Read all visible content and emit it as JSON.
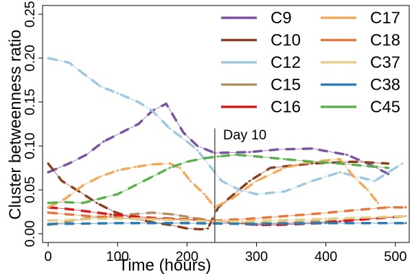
{
  "chart_data": {
    "type": "line",
    "title": "",
    "xlabel": "Time (hours)",
    "ylabel": "Cluster betweenness ratio",
    "xlim": [
      -8,
      520
    ],
    "ylim": [
      -0.01,
      0.26
    ],
    "xticks": [
      0,
      100,
      200,
      300,
      400,
      500
    ],
    "xtick_labels": [
      "0",
      "100",
      "200",
      "300",
      "400",
      "500"
    ],
    "yticks": [
      0.0,
      0.05,
      0.1,
      0.15,
      0.2,
      0.25
    ],
    "ytick_labels": [
      "0.00",
      "0.05",
      "0.10",
      "0.15",
      "0.20",
      "0.25"
    ],
    "grid": false,
    "legend_position": "top-right",
    "annotation": {
      "x": 240,
      "label": "Day 10"
    },
    "series": [
      {
        "name": "C9",
        "color": "#7b52a1",
        "x": [
          0,
          30,
          55,
          80,
          105,
          130,
          150,
          170,
          195,
          215,
          240,
          290,
          330,
          380,
          430,
          460,
          490
        ],
        "y": [
          0.07,
          0.08,
          0.09,
          0.105,
          0.115,
          0.125,
          0.14,
          0.148,
          0.115,
          0.1,
          0.092,
          0.093,
          0.096,
          0.097,
          0.09,
          0.08,
          0.068
        ]
      },
      {
        "name": "C10",
        "color": "#8b3e1e",
        "x": [
          0,
          20,
          45,
          70,
          95,
          120,
          150,
          175,
          200,
          220,
          230,
          245,
          260,
          290,
          320,
          380,
          440,
          490
        ],
        "y": [
          0.08,
          0.06,
          0.048,
          0.035,
          0.025,
          0.018,
          0.013,
          0.01,
          0.006,
          0.005,
          0.006,
          0.03,
          0.04,
          0.06,
          0.075,
          0.08,
          0.082,
          0.08
        ]
      },
      {
        "name": "C12",
        "color": "#9ec8e0",
        "x": [
          0,
          30,
          55,
          75,
          100,
          130,
          150,
          175,
          200,
          215,
          235,
          250,
          275,
          300,
          340,
          380,
          420,
          470,
          490,
          510
        ],
        "y": [
          0.2,
          0.195,
          0.18,
          0.168,
          0.16,
          0.15,
          0.14,
          0.12,
          0.105,
          0.095,
          0.075,
          0.06,
          0.05,
          0.045,
          0.048,
          0.06,
          0.07,
          0.06,
          0.07,
          0.08
        ]
      },
      {
        "name": "C15",
        "color": "#b09060",
        "x": [
          0,
          30,
          60,
          90,
          120,
          150,
          180,
          210,
          240,
          280,
          320,
          360,
          400,
          440,
          480,
          515
        ],
        "y": [
          0.01,
          0.014,
          0.018,
          0.02,
          0.022,
          0.024,
          0.022,
          0.018,
          0.014,
          0.012,
          0.012,
          0.013,
          0.014,
          0.016,
          0.018,
          0.02
        ]
      },
      {
        "name": "C16",
        "color": "#d7191c",
        "x": [
          0,
          30,
          60,
          90,
          120,
          150,
          180,
          210,
          240,
          270,
          300,
          330,
          360,
          390,
          420,
          450,
          480,
          515
        ],
        "y": [
          0.03,
          0.028,
          0.025,
          0.022,
          0.02,
          0.018,
          0.017,
          0.016,
          0.015,
          0.012,
          0.01,
          0.01,
          0.011,
          0.012,
          0.014,
          0.016,
          0.018,
          0.02
        ]
      },
      {
        "name": "C17",
        "color": "#f4a95a",
        "x": [
          0,
          25,
          50,
          75,
          100,
          125,
          150,
          175,
          190,
          205,
          225,
          240,
          265,
          300,
          340,
          380,
          420,
          440,
          460,
          475
        ],
        "y": [
          0.03,
          0.04,
          0.055,
          0.065,
          0.072,
          0.076,
          0.079,
          0.08,
          0.075,
          0.06,
          0.045,
          0.03,
          0.04,
          0.06,
          0.075,
          0.082,
          0.085,
          0.065,
          0.05,
          0.035
        ]
      },
      {
        "name": "C18",
        "color": "#e8763b",
        "x": [
          0,
          30,
          60,
          100,
          150,
          200,
          240,
          290,
          340,
          390,
          430,
          460,
          490,
          515
        ],
        "y": [
          0.024,
          0.022,
          0.02,
          0.018,
          0.017,
          0.016,
          0.015,
          0.017,
          0.02,
          0.023,
          0.026,
          0.028,
          0.03,
          0.03
        ]
      },
      {
        "name": "C37",
        "color": "#e3cf8a",
        "x": [
          0,
          40,
          80,
          120,
          160,
          200,
          240,
          280,
          320,
          360,
          400,
          440,
          480,
          515
        ],
        "y": [
          0.015,
          0.016,
          0.017,
          0.017,
          0.016,
          0.015,
          0.014,
          0.014,
          0.015,
          0.016,
          0.017,
          0.018,
          0.019,
          0.02
        ]
      },
      {
        "name": "C38",
        "color": "#2c7bb6",
        "x": [
          0,
          100,
          200,
          300,
          400,
          515
        ],
        "y": [
          0.011,
          0.012,
          0.012,
          0.011,
          0.012,
          0.012
        ]
      },
      {
        "name": "C45",
        "color": "#5ab04d",
        "x": [
          0,
          25,
          50,
          75,
          100,
          125,
          150,
          175,
          200,
          225,
          245,
          270,
          300,
          340,
          380,
          420,
          460,
          490
        ],
        "y": [
          0.035,
          0.036,
          0.035,
          0.04,
          0.045,
          0.055,
          0.065,
          0.075,
          0.082,
          0.086,
          0.088,
          0.09,
          0.088,
          0.085,
          0.082,
          0.08,
          0.077,
          0.075
        ]
      }
    ]
  }
}
